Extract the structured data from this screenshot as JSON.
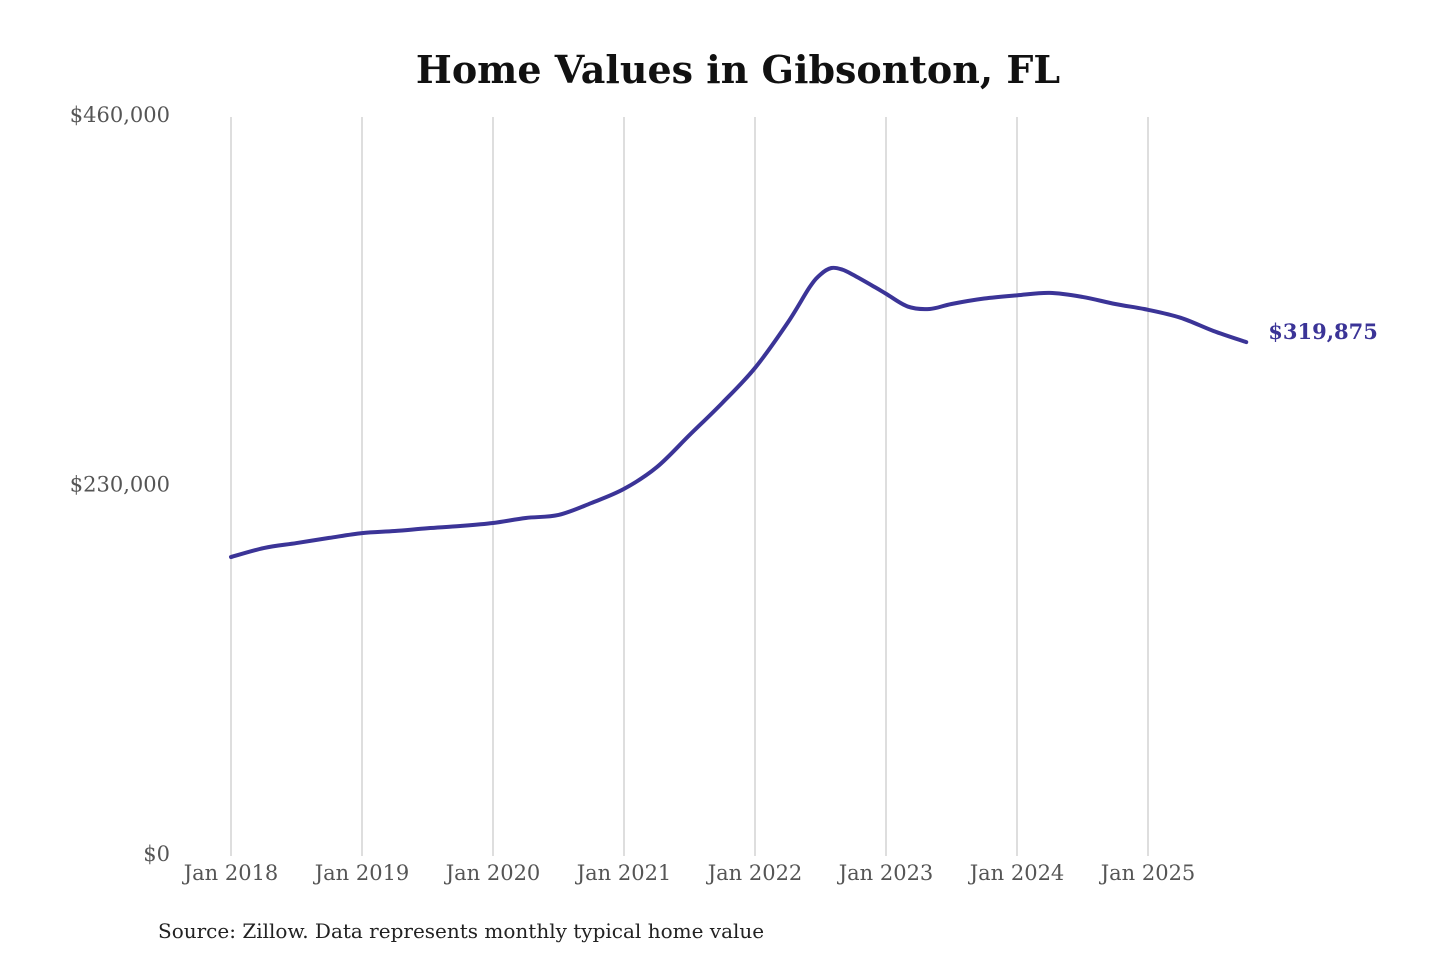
{
  "chart_data": {
    "type": "line",
    "title": "Home Values in Gibsonton, FL",
    "xlabel": "",
    "ylabel": "",
    "ylim": [
      0,
      460000
    ],
    "y_ticks": [
      0,
      230000,
      460000
    ],
    "y_tick_labels": [
      "$0",
      "$230,000",
      "$460,000"
    ],
    "x_ticks": [
      "2018-01",
      "2019-01",
      "2020-01",
      "2021-01",
      "2022-01",
      "2023-01",
      "2024-01",
      "2025-01"
    ],
    "x_tick_labels": [
      "Jan 2018",
      "Jan 2019",
      "Jan 2020",
      "Jan 2021",
      "Jan 2022",
      "Jan 2023",
      "Jan 2024",
      "Jan 2025"
    ],
    "grid": "vertical",
    "line_color": "#3b3497",
    "series": [
      {
        "x": [
          "2018-01",
          "2018-04",
          "2018-07",
          "2018-10",
          "2019-01",
          "2019-04",
          "2019-07",
          "2019-10",
          "2020-01",
          "2020-04",
          "2020-07",
          "2020-10",
          "2021-01",
          "2021-04",
          "2021-07",
          "2021-10",
          "2022-01",
          "2022-04",
          "2022-06",
          "2022-07",
          "2022-08",
          "2022-09",
          "2022-10",
          "2022-12",
          "2023-01",
          "2023-03",
          "2023-05",
          "2023-07",
          "2023-10",
          "2024-01",
          "2024-04",
          "2024-07",
          "2024-10",
          "2025-01",
          "2025-04",
          "2025-07",
          "2025-10"
        ],
        "values": [
          186100,
          191700,
          194800,
          198000,
          201000,
          202300,
          204000,
          205400,
          207300,
          210400,
          212300,
          219700,
          228500,
          242000,
          262000,
          282000,
          303800,
          332000,
          354000,
          362000,
          366000,
          365000,
          361700,
          354000,
          350000,
          342000,
          340500,
          343600,
          347000,
          349000,
          350500,
          348000,
          343600,
          340000,
          335000,
          326800,
          319875
        ]
      }
    ],
    "end_label": "$319,875",
    "source": "Source: Zillow. Data represents monthly typical home value"
  }
}
